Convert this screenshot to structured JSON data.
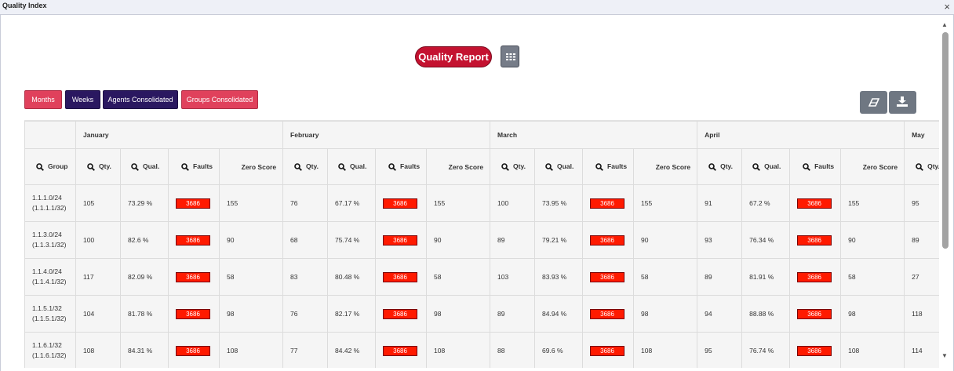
{
  "window": {
    "title": "Quality Index",
    "close_glyph": "×"
  },
  "header": {
    "report_label": "Quality Report",
    "grid_icon": "grid-icon"
  },
  "tabs": [
    {
      "label": "Months",
      "color": "#e0415c"
    },
    {
      "label": "Weeks",
      "color": "#2a1860"
    },
    {
      "label": "Agents Consolidated",
      "color": "#2a1860"
    },
    {
      "label": "Groups Consolidated",
      "color": "#e0415c"
    }
  ],
  "tools": {
    "eraser_icon": "eraser-icon",
    "download_icon": "download-icon"
  },
  "table": {
    "months": [
      "January",
      "February",
      "March",
      "April",
      "May"
    ],
    "group_col": "Group",
    "cols": {
      "qty": "Qty.",
      "qual": "Qual.",
      "faults": "Faults",
      "zero": "Zero Score"
    },
    "rows": [
      {
        "group": [
          "1.1.1.0/24",
          "(1.1.1.1/32)"
        ],
        "months": [
          {
            "qty": "105",
            "qual": "73.29 %",
            "faults": "3686",
            "zero": "155"
          },
          {
            "qty": "76",
            "qual": "67.17 %",
            "faults": "3686",
            "zero": "155"
          },
          {
            "qty": "100",
            "qual": "73.95 %",
            "faults": "3686",
            "zero": "155"
          },
          {
            "qty": "91",
            "qual": "67.2 %",
            "faults": "3686",
            "zero": "155"
          },
          {
            "qty": "95"
          }
        ]
      },
      {
        "group": [
          "1.1.3.0/24",
          "(1.1.3.1/32)"
        ],
        "months": [
          {
            "qty": "100",
            "qual": "82.6 %",
            "faults": "3686",
            "zero": "90"
          },
          {
            "qty": "68",
            "qual": "75.74 %",
            "faults": "3686",
            "zero": "90"
          },
          {
            "qty": "89",
            "qual": "79.21 %",
            "faults": "3686",
            "zero": "90"
          },
          {
            "qty": "93",
            "qual": "76.34 %",
            "faults": "3686",
            "zero": "90"
          },
          {
            "qty": "89"
          }
        ]
      },
      {
        "group": [
          "1.1.4.0/24",
          "(1.1.4.1/32)"
        ],
        "months": [
          {
            "qty": "117",
            "qual": "82.09 %",
            "faults": "3686",
            "zero": "58"
          },
          {
            "qty": "83",
            "qual": "80.48 %",
            "faults": "3686",
            "zero": "58"
          },
          {
            "qty": "103",
            "qual": "83.93 %",
            "faults": "3686",
            "zero": "58"
          },
          {
            "qty": "89",
            "qual": "81.91 %",
            "faults": "3686",
            "zero": "58"
          },
          {
            "qty": "27"
          }
        ]
      },
      {
        "group": [
          "1.1.5.1/32",
          "(1.1.5.1/32)"
        ],
        "months": [
          {
            "qty": "104",
            "qual": "81.78 %",
            "faults": "3686",
            "zero": "98"
          },
          {
            "qty": "76",
            "qual": "82.17 %",
            "faults": "3686",
            "zero": "98"
          },
          {
            "qty": "89",
            "qual": "84.94 %",
            "faults": "3686",
            "zero": "98"
          },
          {
            "qty": "94",
            "qual": "88.88 %",
            "faults": "3686",
            "zero": "98"
          },
          {
            "qty": "118"
          }
        ]
      },
      {
        "group": [
          "1.1.6.1/32",
          "(1.1.6.1/32)"
        ],
        "months": [
          {
            "qty": "108",
            "qual": "84.31 %",
            "faults": "3686",
            "zero": "108"
          },
          {
            "qty": "77",
            "qual": "84.42 %",
            "faults": "3686",
            "zero": "108"
          },
          {
            "qty": "88",
            "qual": "69.6 %",
            "faults": "3686",
            "zero": "108"
          },
          {
            "qty": "95",
            "qual": "76.74 %",
            "faults": "3686",
            "zero": "108"
          },
          {
            "qty": "114"
          }
        ]
      }
    ]
  },
  "colors": {
    "accent": "#c41230",
    "fault_badge": "#ff1a00",
    "tab_pink": "#e0415c",
    "tab_navy": "#2a1860"
  }
}
